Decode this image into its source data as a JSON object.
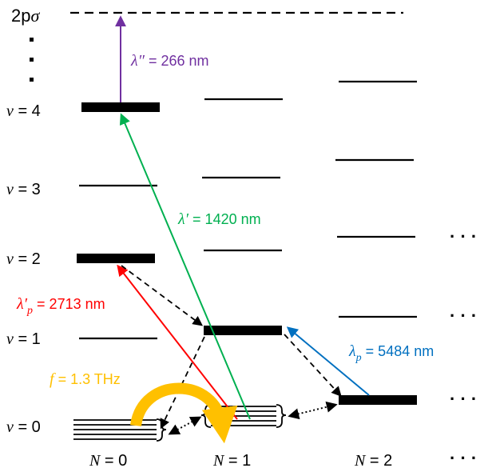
{
  "colors": {
    "purple": "#7030A0",
    "green": "#00B050",
    "red": "#FF0000",
    "blue": "#0070C0",
    "gold": "#FFC000",
    "black": "#000000"
  },
  "top_label": {
    "main": "2p",
    "sigma": "σ"
  },
  "v_labels": [
    {
      "sym": "v",
      "text": " = 0"
    },
    {
      "sym": "v",
      "text": " = 1"
    },
    {
      "sym": "v",
      "text": " = 2"
    },
    {
      "sym": "v",
      "text": " = 3"
    },
    {
      "sym": "v",
      "text": " = 4"
    }
  ],
  "n_labels": [
    {
      "sym": "N",
      "text": " = 0"
    },
    {
      "sym": "N",
      "text": " = 1"
    },
    {
      "sym": "N",
      "text": " = 2"
    }
  ],
  "transitions": {
    "lambda_double_prime": {
      "symbol": "λ″",
      "text": " = 266 nm"
    },
    "lambda_prime": {
      "symbol": "λ′",
      "text": " = 1420 nm"
    },
    "lambda_prime_p": {
      "symbol": "λ′",
      "sub": "p",
      "text": " = 2713 nm"
    },
    "lambda_p": {
      "symbol": "λ",
      "sub": "p",
      "text": " = 5484 nm"
    },
    "frequency": {
      "symbol": "f",
      "text": " = 1.3 THz"
    }
  },
  "ellipsis": "· · ·"
}
